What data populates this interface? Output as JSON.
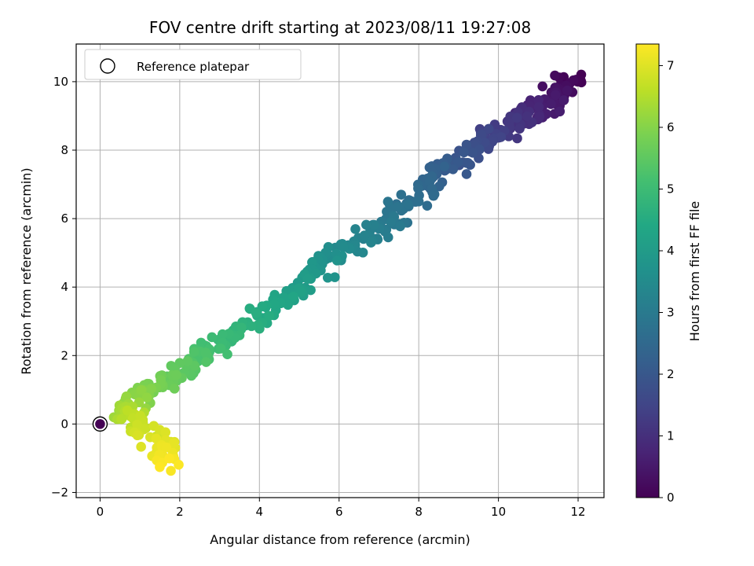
{
  "chart_data": {
    "type": "scatter",
    "title": "FOV centre drift starting at 2023/08/11 19:27:08",
    "xlabel": "Angular distance from reference (arcmin)",
    "ylabel": "Rotation from reference (arcmin)",
    "xlim": [
      -0.6,
      12.65
    ],
    "ylim": [
      -2.15,
      11.1
    ],
    "xticks": [
      0,
      2,
      4,
      6,
      8,
      10,
      12
    ],
    "yticks": [
      -2,
      0,
      2,
      4,
      6,
      8,
      10
    ],
    "grid": true,
    "legend": {
      "position": "top-left",
      "entries": [
        "Reference platepar"
      ]
    },
    "reference_point": {
      "x": 0,
      "y": 0
    },
    "colorbar": {
      "label": "Hours from first FF file",
      "colormap": "viridis",
      "range": [
        0,
        7.35
      ],
      "ticks": [
        0,
        1,
        2,
        3,
        4,
        5,
        6,
        7
      ]
    },
    "trend_anchors": [
      {
        "hours": 0.0,
        "x": 11.9,
        "y": 10.1
      },
      {
        "hours": 0.6,
        "x": 11.2,
        "y": 9.3
      },
      {
        "hours": 1.2,
        "x": 10.2,
        "y": 8.7
      },
      {
        "hours": 1.8,
        "x": 9.3,
        "y": 8.0
      },
      {
        "hours": 2.4,
        "x": 8.3,
        "y": 7.0
      },
      {
        "hours": 3.0,
        "x": 7.2,
        "y": 5.8
      },
      {
        "hours": 3.6,
        "x": 5.8,
        "y": 4.9
      },
      {
        "hours": 4.2,
        "x": 4.7,
        "y": 3.7
      },
      {
        "hours": 4.8,
        "x": 3.3,
        "y": 2.6
      },
      {
        "hours": 5.4,
        "x": 2.3,
        "y": 1.7
      },
      {
        "hours": 5.9,
        "x": 1.2,
        "y": 1.0
      },
      {
        "hours": 6.3,
        "x": 0.5,
        "y": 0.4
      },
      {
        "hours": 6.7,
        "x": 1.0,
        "y": 0.1
      },
      {
        "hours": 7.0,
        "x": 1.5,
        "y": -0.5
      },
      {
        "hours": 7.35,
        "x": 1.75,
        "y": -1.2
      }
    ],
    "n_points": 520,
    "scatter": [
      0.35,
      0.3
    ]
  }
}
